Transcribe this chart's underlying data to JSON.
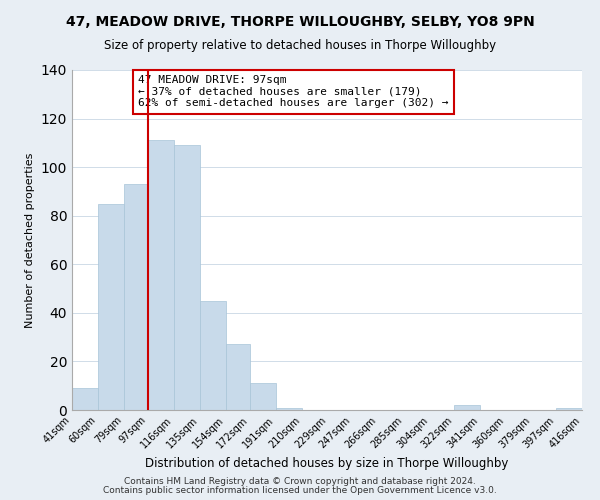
{
  "title": "47, MEADOW DRIVE, THORPE WILLOUGHBY, SELBY, YO8 9PN",
  "subtitle": "Size of property relative to detached houses in Thorpe Willoughby",
  "xlabel": "Distribution of detached houses by size in Thorpe Willoughby",
  "ylabel": "Number of detached properties",
  "bar_edges": [
    41,
    60,
    79,
    97,
    116,
    135,
    154,
    172,
    191,
    210,
    229,
    247,
    266,
    285,
    304,
    322,
    341,
    360,
    379,
    397,
    416
  ],
  "bar_heights": [
    9,
    85,
    93,
    111,
    109,
    45,
    27,
    11,
    1,
    0,
    0,
    0,
    0,
    0,
    0,
    2,
    0,
    0,
    0,
    1
  ],
  "bar_color": "#c8daea",
  "bar_edgecolor": "#a8c4d8",
  "vline_x": 97,
  "vline_color": "#cc0000",
  "ylim": [
    0,
    140
  ],
  "yticks": [
    0,
    20,
    40,
    60,
    80,
    100,
    120,
    140
  ],
  "tick_labels": [
    "41sqm",
    "60sqm",
    "79sqm",
    "97sqm",
    "116sqm",
    "135sqm",
    "154sqm",
    "172sqm",
    "191sqm",
    "210sqm",
    "229sqm",
    "247sqm",
    "266sqm",
    "285sqm",
    "304sqm",
    "322sqm",
    "341sqm",
    "360sqm",
    "379sqm",
    "397sqm",
    "416sqm"
  ],
  "annotation_title": "47 MEADOW DRIVE: 97sqm",
  "annotation_line1": "← 37% of detached houses are smaller (179)",
  "annotation_line2": "62% of semi-detached houses are larger (302) →",
  "annotation_box_color": "#ffffff",
  "annotation_box_edgecolor": "#cc0000",
  "footer1": "Contains HM Land Registry data © Crown copyright and database right 2024.",
  "footer2": "Contains public sector information licensed under the Open Government Licence v3.0.",
  "background_color": "#e8eef4",
  "plot_background_color": "#ffffff",
  "grid_color": "#d0dce8"
}
